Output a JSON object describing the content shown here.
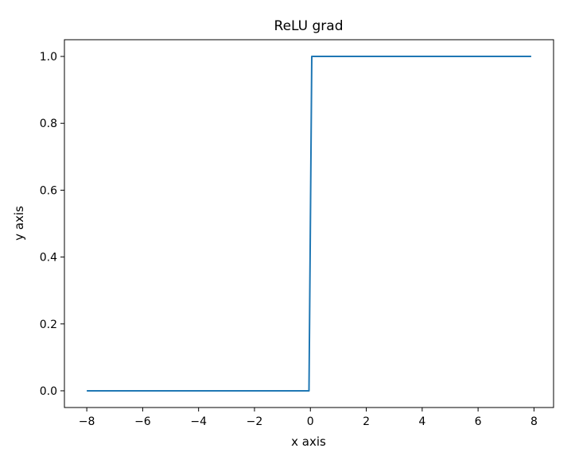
{
  "chart_data": {
    "type": "line",
    "title": "ReLU grad",
    "xlabel": "x axis",
    "ylabel": "y axis",
    "xlim": [
      -8.8,
      8.7
    ],
    "ylim": [
      -0.05,
      1.05
    ],
    "xticks": [
      -8,
      -6,
      -4,
      -2,
      0,
      2,
      4,
      6,
      8
    ],
    "xtick_labels": [
      "−8",
      "−6",
      "−4",
      "−2",
      "0",
      "2",
      "4",
      "6",
      "8"
    ],
    "yticks": [
      0.0,
      0.2,
      0.4,
      0.6,
      0.8,
      1.0
    ],
    "ytick_labels": [
      "0.0",
      "0.2",
      "0.4",
      "0.6",
      "0.8",
      "1.0"
    ],
    "grid": false,
    "series": [
      {
        "color": "#1f77b4",
        "x": [
          -8.0,
          -0.05,
          0.05,
          7.9
        ],
        "y": [
          0.0,
          0.0,
          1.0,
          1.0
        ]
      }
    ]
  }
}
